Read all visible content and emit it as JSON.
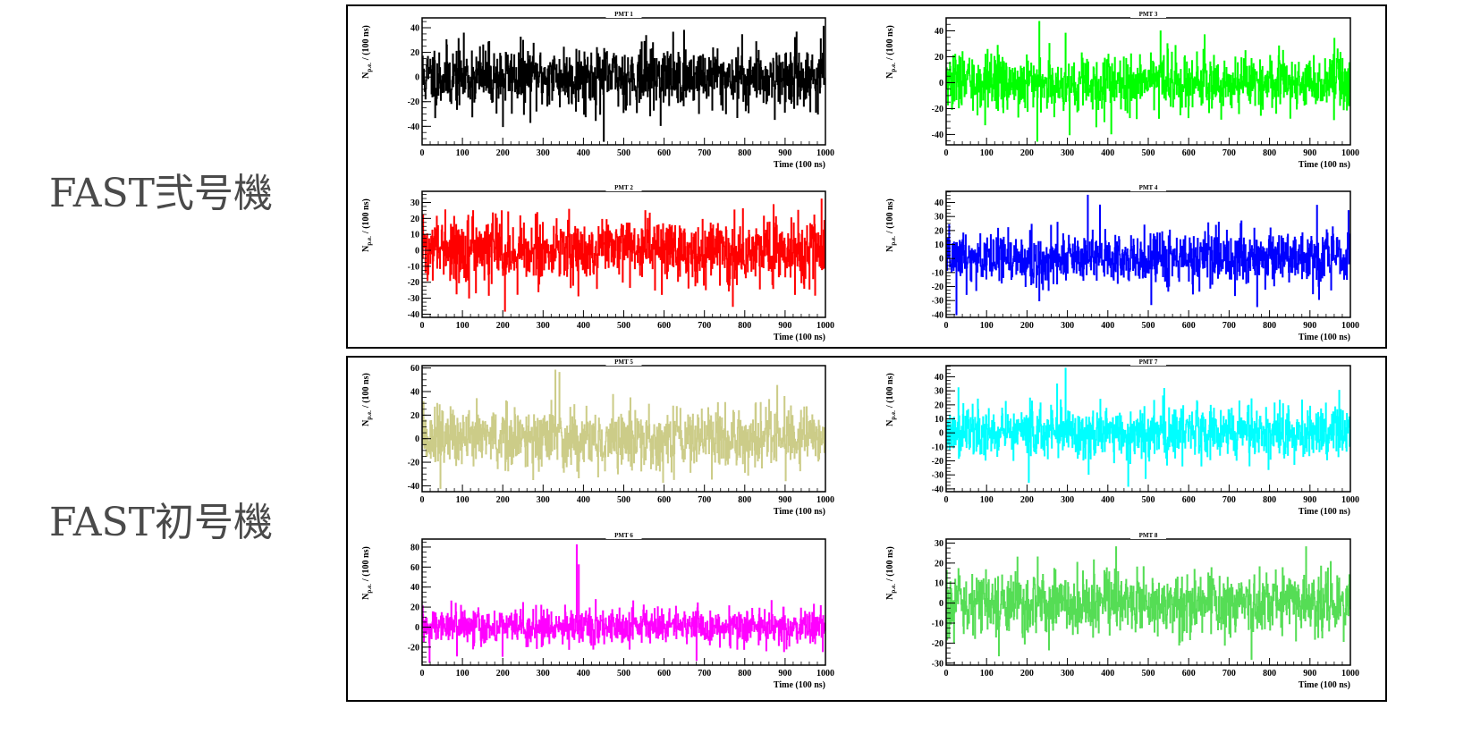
{
  "groups": [
    {
      "label": "FAST弐号機",
      "panels": [
        0,
        1,
        2,
        3
      ]
    },
    {
      "label": "FAST初号機",
      "panels": [
        4,
        5,
        6,
        7
      ]
    }
  ],
  "chart_data": [
    {
      "type": "line",
      "title": "PMT 1",
      "color": "#000000",
      "xlabel": "Time (100 ns)",
      "ylabel_main": "N",
      "ylabel_sub": "p.e.",
      "ylabel_rest": "/ (100 ns)",
      "xlim": [
        0,
        1000
      ],
      "ylim": [
        -55,
        48
      ],
      "xticks": [
        0,
        100,
        200,
        300,
        400,
        500,
        600,
        700,
        800,
        900,
        1000
      ],
      "yticks": [
        -40,
        -20,
        0,
        20,
        40
      ],
      "noise": {
        "n": 1000,
        "sigma": 13,
        "seed": 11
      },
      "features": [
        {
          "x": 450,
          "y": -52
        },
        {
          "x": 200,
          "y": -40
        },
        {
          "x": 995,
          "y": 41
        }
      ]
    },
    {
      "type": "line",
      "title": "PMT 2",
      "color": "#ff0000",
      "xlabel": "Time (100 ns)",
      "ylabel_main": "N",
      "ylabel_sub": "p.e.",
      "ylabel_rest": "/ (100 ns)",
      "xlim": [
        0,
        1000
      ],
      "ylim": [
        -42,
        37
      ],
      "xticks": [
        0,
        100,
        200,
        300,
        400,
        500,
        600,
        700,
        800,
        900,
        1000
      ],
      "yticks": [
        -40,
        -30,
        -20,
        -10,
        0,
        10,
        20,
        30
      ],
      "noise": {
        "n": 1000,
        "sigma": 10,
        "seed": 22
      },
      "features": [
        {
          "x": 205,
          "y": -38
        },
        {
          "x": 770,
          "y": -35
        },
        {
          "x": 990,
          "y": 32
        }
      ]
    },
    {
      "type": "line",
      "title": "PMT 3",
      "color": "#00ff00",
      "xlabel": "Time (100 ns)",
      "ylabel_main": "N",
      "ylabel_sub": "p.e.",
      "ylabel_rest": "/ (100 ns)",
      "xlim": [
        0,
        1000
      ],
      "ylim": [
        -48,
        50
      ],
      "xticks": [
        0,
        100,
        200,
        300,
        400,
        500,
        600,
        700,
        800,
        900,
        1000
      ],
      "yticks": [
        -40,
        -20,
        0,
        20,
        40
      ],
      "noise": {
        "n": 1000,
        "sigma": 11,
        "seed": 33
      },
      "features": [
        {
          "x": 230,
          "y": 47
        },
        {
          "x": 225,
          "y": -45
        },
        {
          "x": 295,
          "y": 38
        },
        {
          "x": 305,
          "y": -40
        },
        {
          "x": 960,
          "y": 34
        }
      ]
    },
    {
      "type": "line",
      "title": "PMT 4",
      "color": "#0000ff",
      "xlabel": "Time (100 ns)",
      "ylabel_main": "N",
      "ylabel_sub": "p.e.",
      "ylabel_rest": "/ (100 ns)",
      "xlim": [
        0,
        1000
      ],
      "ylim": [
        -42,
        48
      ],
      "xticks": [
        0,
        100,
        200,
        300,
        400,
        500,
        600,
        700,
        800,
        900,
        1000
      ],
      "yticks": [
        -40,
        -30,
        -20,
        -10,
        0,
        10,
        20,
        30,
        40
      ],
      "noise": {
        "n": 1000,
        "sigma": 10,
        "seed": 44
      },
      "features": [
        {
          "x": 25,
          "y": -40
        },
        {
          "x": 350,
          "y": 45
        },
        {
          "x": 380,
          "y": 38
        },
        {
          "x": 995,
          "y": 34
        }
      ]
    },
    {
      "type": "line",
      "title": "PMT 5",
      "color": "#cccc88",
      "xlabel": "Time (100 ns)",
      "ylabel_main": "N",
      "ylabel_sub": "p.e.",
      "ylabel_rest": "/ (100 ns)",
      "xlim": [
        0,
        1000
      ],
      "ylim": [
        -45,
        62
      ],
      "xticks": [
        0,
        100,
        200,
        300,
        400,
        500,
        600,
        700,
        800,
        900,
        1000
      ],
      "yticks": [
        -40,
        -20,
        0,
        20,
        40,
        60
      ],
      "noise": {
        "n": 1000,
        "sigma": 13,
        "seed": 55
      },
      "features": [
        {
          "x": 330,
          "y": 58
        },
        {
          "x": 340,
          "y": 56
        },
        {
          "x": 45,
          "y": -42
        },
        {
          "x": 880,
          "y": 45
        }
      ]
    },
    {
      "type": "line",
      "title": "PMT 6",
      "color": "#ff00ff",
      "xlabel": "Time (100 ns)",
      "ylabel_main": "N",
      "ylabel_sub": "p.e.",
      "ylabel_rest": "/ (100 ns)",
      "xlim": [
        0,
        1000
      ],
      "ylim": [
        -38,
        88
      ],
      "xticks": [
        0,
        100,
        200,
        300,
        400,
        500,
        600,
        700,
        800,
        900,
        1000
      ],
      "yticks": [
        -20,
        0,
        20,
        40,
        60,
        80
      ],
      "noise": {
        "n": 1000,
        "sigma": 9,
        "seed": 66
      },
      "features": [
        {
          "x": 383,
          "y": 82
        },
        {
          "x": 388,
          "y": 62
        },
        {
          "x": 18,
          "y": -35
        },
        {
          "x": 680,
          "y": -33
        }
      ]
    },
    {
      "type": "line",
      "title": "PMT 7",
      "color": "#00ffff",
      "xlabel": "Time (100 ns)",
      "ylabel_main": "N",
      "ylabel_sub": "p.e.",
      "ylabel_rest": "/ (100 ns)",
      "xlim": [
        0,
        1000
      ],
      "ylim": [
        -42,
        48
      ],
      "xticks": [
        0,
        100,
        200,
        300,
        400,
        500,
        600,
        700,
        800,
        900,
        1000
      ],
      "yticks": [
        -40,
        -30,
        -20,
        -10,
        0,
        10,
        20,
        30,
        40
      ],
      "noise": {
        "n": 1000,
        "sigma": 10,
        "seed": 77
      },
      "features": [
        {
          "x": 295,
          "y": 46
        },
        {
          "x": 450,
          "y": -38
        },
        {
          "x": 30,
          "y": 32
        }
      ]
    },
    {
      "type": "line",
      "title": "PMT 8",
      "color": "#55dd55",
      "xlabel": "Time (100 ns)",
      "ylabel_main": "N",
      "ylabel_sub": "p.e.",
      "ylabel_rest": "/ (100 ns)",
      "xlim": [
        0,
        1000
      ],
      "ylim": [
        -31,
        32
      ],
      "xticks": [
        0,
        100,
        200,
        300,
        400,
        500,
        600,
        700,
        800,
        900,
        1000
      ],
      "yticks": [
        -30,
        -20,
        -10,
        0,
        10,
        20,
        30
      ],
      "noise": {
        "n": 1000,
        "sigma": 8,
        "seed": 88
      },
      "features": [
        {
          "x": 755,
          "y": -28
        },
        {
          "x": 890,
          "y": 28
        },
        {
          "x": 420,
          "y": 28
        }
      ]
    }
  ]
}
